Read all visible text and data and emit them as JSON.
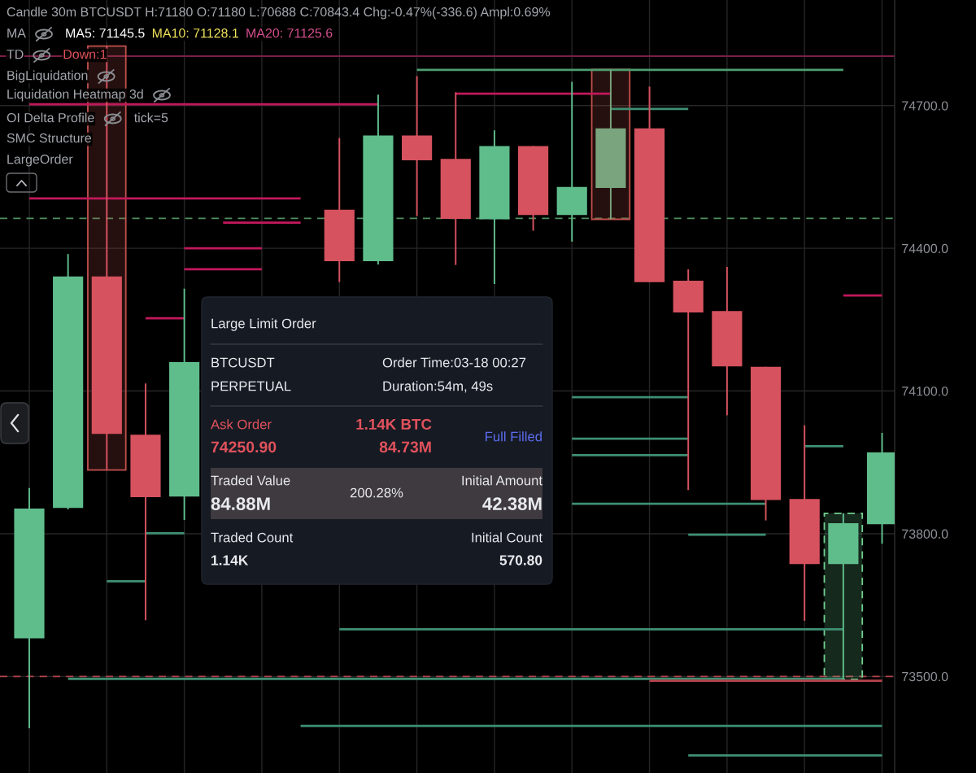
{
  "chart_data": {
    "type": "candlestick",
    "title": "Candle 30m BTCUSDT H:71180 O:71180 L:70688 C:70843.4 Chg:-0.47%(-336.6) Ampl:0.69%",
    "annotations": [
      "MA",
      "MA5: 71145.5",
      "MA10: 71128.1",
      "MA20: 71125.6",
      "TD",
      "Down:1",
      "BigLiquidation",
      "Liquidation Heatmap 3d",
      "OI Delta Profile",
      "tick=5",
      "SMC Structure",
      "LargeOrder",
      "Large Limit Order",
      "BTCUSDT",
      "PERPETUAL",
      "Order Time:03-18 00:27",
      "Duration:54m, 49s",
      "Ask Order",
      "74250.90",
      "1.14K BTC",
      "84.73M",
      "Full Filled",
      "Traded Value",
      "84.88M",
      "200.28%",
      "Initial Amount",
      "42.38M",
      "Traded Count",
      "1.14K",
      "Initial Count",
      "570.80"
    ],
    "categories": [
      null,
      null,
      null,
      null,
      null,
      null,
      null,
      null,
      null,
      null,
      null,
      null,
      null,
      null,
      null,
      null,
      null,
      null,
      null,
      null,
      null,
      null,
      null
    ],
    "ohlc": [
      [
        73580,
        73896,
        73391,
        73853
      ],
      [
        73854,
        74388,
        73851,
        74341
      ],
      [
        74341,
        74825,
        73934,
        74010
      ],
      [
        74008,
        74116,
        73618,
        73877
      ],
      [
        73878,
        74315,
        73829,
        74161
      ],
      null,
      null,
      null,
      [
        74481,
        74632,
        74329,
        74373
      ],
      [
        74373,
        74723,
        74366,
        74637
      ],
      [
        74637,
        74762,
        74468,
        74585
      ],
      [
        74588,
        74728,
        74365,
        74462
      ],
      [
        74461,
        74648,
        74325,
        74615
      ],
      [
        74615,
        74615,
        74437,
        74470
      ],
      [
        74470,
        74750,
        74414,
        74529
      ],
      [
        74527,
        74776,
        74461,
        74652
      ],
      [
        74652,
        74740,
        74329,
        74329
      ],
      [
        74332,
        74356,
        73892,
        74265
      ],
      [
        74268,
        74361,
        74049,
        74152
      ],
      [
        74151,
        74151,
        73828,
        73871
      ],
      [
        73873,
        74028,
        73617,
        73736
      ],
      [
        73736,
        73843,
        73494,
        73822
      ],
      [
        73820,
        74012,
        73779,
        73971
      ]
    ],
    "colors": [
      "#5fbd8c",
      "#5fbd8c",
      "#d6525f",
      "#d6525f",
      "#5fbd8c",
      null,
      null,
      null,
      "#d6525f",
      "#5fbd8c",
      "#d6525f",
      "#d6525f",
      "#5fbd8c",
      "#d6525f",
      "#5fbd8c",
      "#79a47e",
      "#d6525f",
      "#d6525f",
      "#d6525f",
      "#d6525f",
      "#d6525f",
      "#5fbd8c",
      "#5fbd8c"
    ],
    "series": [
      {
        "type": "bar",
        "color": "#c0504d",
        "line_style": "solid",
        "values": [
          null,
          null,
          891,
          null,
          null,
          null,
          null,
          null,
          null,
          null,
          null,
          null,
          null,
          null,
          null,
          315,
          null,
          null,
          null,
          null,
          null,
          null,
          null
        ],
        "base": [
          null,
          null,
          73934,
          null,
          null,
          null,
          null,
          null,
          null,
          null,
          null,
          null,
          null,
          null,
          null,
          74461,
          null,
          null,
          null,
          null,
          null,
          null,
          null
        ]
      },
      {
        "type": "bar",
        "color": "#6fcf8f",
        "line_style": "dashed",
        "values": [
          null,
          null,
          null,
          null,
          null,
          null,
          null,
          null,
          null,
          null,
          null,
          null,
          null,
          null,
          null,
          null,
          null,
          null,
          null,
          null,
          null,
          349,
          null
        ],
        "base": [
          null,
          null,
          null,
          null,
          null,
          null,
          null,
          null,
          null,
          null,
          null,
          null,
          null,
          null,
          null,
          null,
          null,
          null,
          null,
          null,
          null,
          73494,
          null
        ]
      },
      {
        "type": "line",
        "color": "#4e9e6f",
        "values": [
          null,
          null,
          null,
          null,
          null,
          null,
          null,
          null,
          null,
          null,
          74775,
          74775,
          74775,
          74775,
          74775,
          74775,
          74775,
          74775,
          74775,
          74775,
          74775,
          74775,
          null
        ]
      },
      {
        "type": "line",
        "color": "#c2185b",
        "values": [
          null,
          null,
          null,
          null,
          null,
          null,
          null,
          null,
          null,
          null,
          null,
          74725,
          74725,
          74725,
          74725,
          74725,
          null,
          null,
          null,
          null,
          null,
          null,
          null
        ]
      },
      {
        "type": "line",
        "color": "#3f8f73",
        "values": [
          null,
          null,
          null,
          null,
          null,
          null,
          null,
          null,
          null,
          null,
          null,
          null,
          null,
          null,
          null,
          74693,
          74693,
          74693,
          null,
          null,
          null,
          null,
          null
        ]
      },
      {
        "type": "line",
        "color": "#c2185b",
        "values": [
          74703,
          74703,
          74703,
          74703,
          74703,
          74703,
          74703,
          74703,
          74703,
          74703,
          null,
          null,
          null,
          null,
          null,
          null,
          null,
          null,
          null,
          null,
          null,
          null,
          null
        ]
      },
      {
        "type": "line",
        "color": "#c2185b",
        "values": [
          74505,
          74505,
          74505,
          74505,
          74505,
          74505,
          74505,
          74505,
          null,
          null,
          null,
          null,
          null,
          null,
          null,
          null,
          null,
          null,
          null,
          null,
          null,
          null,
          null
        ]
      },
      {
        "type": "line",
        "color": "#c2185b",
        "values": [
          null,
          null,
          null,
          null,
          null,
          74454,
          74454,
          74454,
          null,
          null,
          null,
          null,
          null,
          null,
          null,
          null,
          null,
          null,
          null,
          null,
          null,
          null,
          null
        ]
      },
      {
        "type": "line",
        "color": "#c2185b",
        "values": [
          null,
          null,
          null,
          null,
          74400,
          74400,
          74400,
          null,
          null,
          null,
          null,
          null,
          null,
          null,
          null,
          null,
          null,
          null,
          null,
          null,
          null,
          null,
          null
        ]
      },
      {
        "type": "line",
        "color": "#c2185b",
        "values": [
          null,
          null,
          null,
          null,
          74356,
          74356,
          74356,
          null,
          null,
          null,
          null,
          null,
          null,
          null,
          null,
          null,
          null,
          null,
          null,
          null,
          null,
          null,
          null
        ]
      },
      {
        "type": "line",
        "color": "#c2185b",
        "values": [
          null,
          null,
          null,
          null,
          null,
          null,
          null,
          null,
          null,
          null,
          null,
          null,
          null,
          null,
          null,
          null,
          null,
          null,
          null,
          null,
          null,
          74301,
          74301
        ]
      },
      {
        "type": "line",
        "color": "#c2185b",
        "values": [
          null,
          null,
          null,
          74253,
          74253,
          null,
          null,
          null,
          null,
          null,
          null,
          null,
          null,
          null,
          null,
          null,
          null,
          null,
          null,
          null,
          null,
          null,
          null
        ]
      },
      {
        "type": "line",
        "color": "#3f8f73",
        "values": [
          null,
          null,
          null,
          null,
          null,
          null,
          null,
          null,
          null,
          null,
          null,
          null,
          null,
          null,
          74087,
          74087,
          74087,
          74087,
          null,
          null,
          null,
          null,
          null
        ]
      },
      {
        "type": "line",
        "color": "#3f8f73",
        "values": [
          null,
          null,
          null,
          null,
          null,
          null,
          null,
          null,
          null,
          null,
          null,
          null,
          null,
          null,
          74000,
          74000,
          74000,
          74000,
          null,
          null,
          null,
          null,
          null
        ]
      },
      {
        "type": "line",
        "color": "#3f8f73",
        "values": [
          null,
          null,
          null,
          null,
          null,
          null,
          null,
          null,
          null,
          null,
          null,
          null,
          null,
          null,
          73965,
          73965,
          73965,
          73965,
          null,
          null,
          null,
          null,
          null
        ]
      },
      {
        "type": "line",
        "color": "#3f8f73",
        "values": [
          null,
          null,
          null,
          null,
          null,
          null,
          null,
          null,
          null,
          null,
          null,
          null,
          null,
          null,
          null,
          null,
          null,
          null,
          null,
          null,
          73984,
          73984,
          null
        ]
      },
      {
        "type": "line",
        "color": "#3f8f73",
        "values": [
          null,
          null,
          null,
          null,
          null,
          null,
          null,
          null,
          null,
          null,
          null,
          null,
          null,
          null,
          73863,
          73863,
          73863,
          73863,
          73863,
          73863,
          null,
          null,
          null
        ]
      },
      {
        "type": "line",
        "color": "#3f8f73",
        "values": [
          null,
          null,
          null,
          73801,
          73801,
          null,
          null,
          null,
          null,
          null,
          null,
          null,
          null,
          null,
          null,
          null,
          null,
          null,
          null,
          null,
          null,
          null,
          null
        ]
      },
      {
        "type": "line",
        "color": "#3f8f73",
        "values": [
          null,
          null,
          null,
          null,
          null,
          null,
          null,
          null,
          null,
          null,
          null,
          null,
          null,
          null,
          null,
          null,
          null,
          73798,
          73798,
          73798,
          null,
          null,
          null
        ]
      },
      {
        "type": "line",
        "color": "#3f8f73",
        "values": [
          null,
          null,
          73700,
          73700,
          null,
          null,
          null,
          null,
          null,
          null,
          null,
          null,
          null,
          null,
          null,
          null,
          null,
          null,
          null,
          null,
          null,
          null,
          null
        ]
      },
      {
        "type": "line",
        "color": "#3f8f73",
        "values": [
          null,
          null,
          null,
          null,
          null,
          null,
          null,
          null,
          73599,
          73599,
          73599,
          73599,
          73599,
          73599,
          73599,
          73599,
          73599,
          73599,
          73599,
          73599,
          73599,
          73599,
          null
        ]
      },
      {
        "type": "line",
        "color": "#3f8f73",
        "values": [
          null,
          73495,
          73495,
          73495,
          73495,
          73495,
          73495,
          73495,
          73495,
          73495,
          73495,
          73495,
          73495,
          73495,
          73495,
          73495,
          73495,
          73495,
          73495,
          73495,
          73495,
          73495,
          null
        ]
      },
      {
        "type": "line",
        "color": "#b5434d",
        "values": [
          null,
          null,
          null,
          null,
          null,
          null,
          null,
          null,
          null,
          null,
          null,
          null,
          null,
          null,
          null,
          null,
          73491,
          73491,
          73491,
          73491,
          73491,
          73491,
          73491
        ]
      },
      {
        "type": "line",
        "color": "#3f8f73",
        "values": [
          null,
          null,
          null,
          null,
          null,
          null,
          null,
          73396,
          73396,
          73396,
          73396,
          73396,
          73396,
          73396,
          73396,
          73396,
          73396,
          73396,
          73396,
          73396,
          73396,
          73396,
          73396
        ]
      },
      {
        "type": "line",
        "color": "#3f8f73",
        "values": [
          null,
          null,
          null,
          null,
          null,
          null,
          null,
          null,
          null,
          null,
          null,
          null,
          null,
          null,
          null,
          null,
          null,
          73334,
          73334,
          73334,
          73334,
          73334,
          73334
        ]
      }
    ],
    "ref_lines": [
      {
        "axis": "y",
        "value": 74804,
        "color": "#7a1f45",
        "line_style": "solid"
      },
      {
        "axis": "y",
        "value": 74463,
        "color": "#4f8f5f",
        "line_style": "dashed"
      },
      {
        "axis": "y",
        "value": 73500,
        "color": "#b5434d",
        "line_style": "dashed"
      }
    ],
    "ylim": [
      73297,
      74922
    ],
    "yticks": [
      {
        "value": 73500,
        "label": "73500.0"
      },
      {
        "value": 73800,
        "label": "73800.0"
      },
      {
        "value": 74100,
        "label": "74100.0"
      },
      {
        "value": 74400,
        "label": "74400.0"
      },
      {
        "value": 74700,
        "label": "74700.0"
      }
    ],
    "grid": true,
    "tick_labels": "y"
  }
}
